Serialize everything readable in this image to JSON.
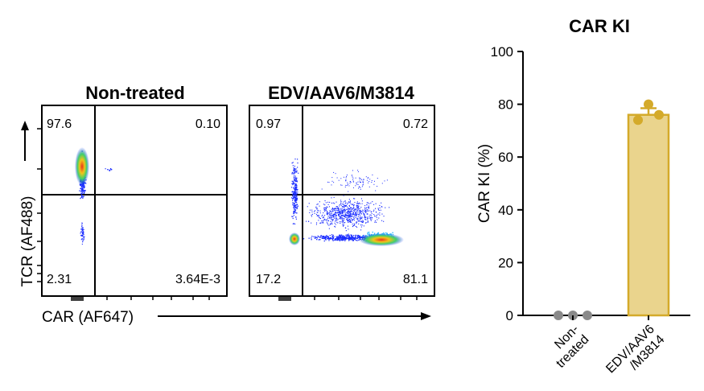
{
  "flow": {
    "xlabel": "CAR (AF647)",
    "ylabel": "TCR (AF488)",
    "panels": [
      {
        "title": "Non-treated",
        "quadrants": {
          "upper_left": "97.6",
          "upper_right": "0.10",
          "lower_left": "2.31",
          "lower_right": "3.64E-3"
        }
      },
      {
        "title": "EDV/AAV6/M3814",
        "quadrants": {
          "upper_left": "0.97",
          "upper_right": "0.72",
          "lower_left": "17.2",
          "lower_right": "81.1"
        }
      }
    ]
  },
  "chart_data": {
    "type": "bar",
    "title": "CAR KI",
    "ylabel": "CAR KI (%)",
    "xlabel": "",
    "ylim": [
      0,
      100
    ],
    "yticks": [
      0,
      20,
      40,
      60,
      80,
      100
    ],
    "categories": [
      "Non-\ntreated",
      "EDV/AAV6\n/M3814"
    ],
    "values": [
      0,
      76
    ],
    "error": [
      0,
      2.5
    ],
    "points": [
      [
        0,
        0,
        0
      ],
      [
        74,
        76,
        80
      ]
    ],
    "colors": {
      "bar_fill": "#ead48d",
      "bar_edge": "#d4aa2a",
      "point_gold": "#d4aa2a",
      "point_gray": "#8a8a8a"
    }
  }
}
